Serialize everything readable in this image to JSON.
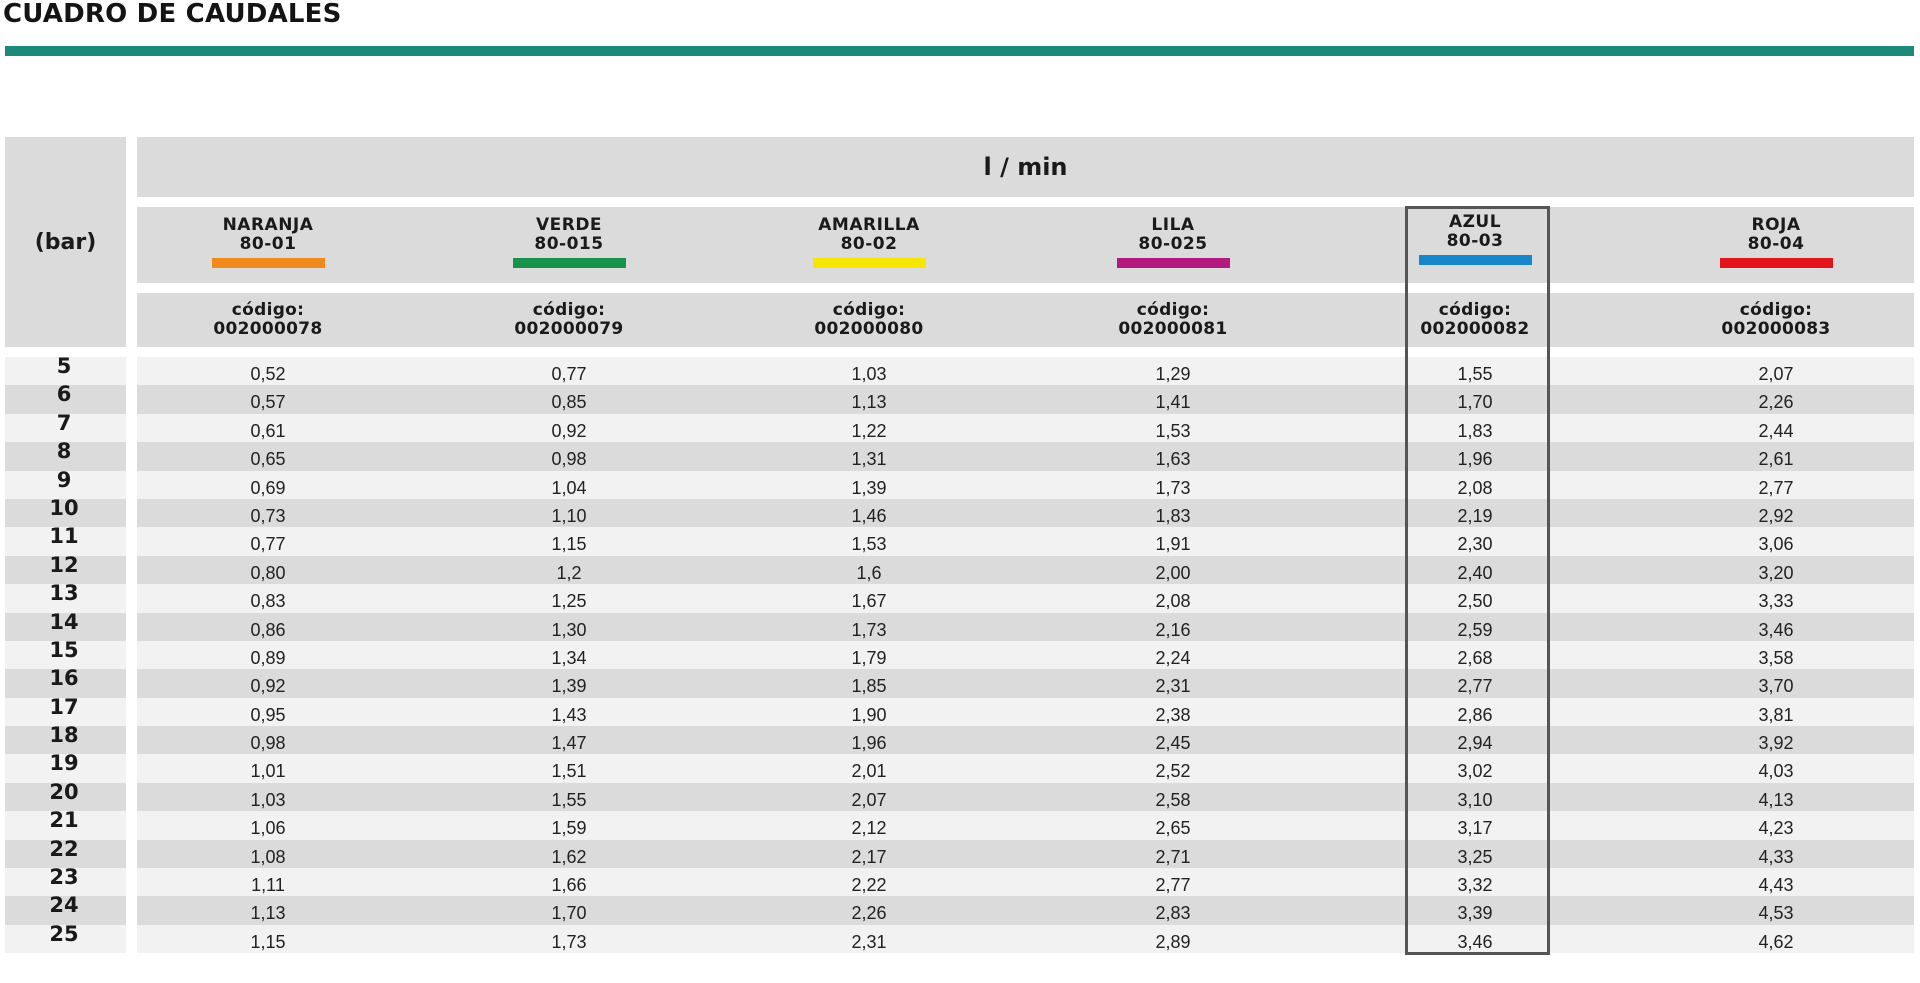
{
  "title": "CUADRO DE CAUDALES",
  "bar_header": "(bar)",
  "unit_header": "l / min",
  "nozzles": [
    {
      "name": "NARANJA",
      "model": "80-01",
      "code_label": "código:",
      "code": "002000078",
      "color": "#f08a1d"
    },
    {
      "name": "VERDE",
      "model": "80-015",
      "code_label": "código:",
      "code": "002000079",
      "color": "#16924a"
    },
    {
      "name": "AMARILLA",
      "model": "80-02",
      "code_label": "código:",
      "code": "002000080",
      "color": "#f6e600"
    },
    {
      "name": "LILA",
      "model": "80-025",
      "code_label": "código:",
      "code": "002000081",
      "color": "#b3197f"
    },
    {
      "name": "AZUL",
      "model": "80-03",
      "code_label": "código:",
      "code": "002000082",
      "color": "#1786cb"
    },
    {
      "name": "ROJA",
      "model": "80-04",
      "code_label": "código:",
      "code": "002000083",
      "color": "#e3141b"
    }
  ],
  "rows": [
    {
      "bar": "5",
      "values": [
        "0,52",
        "0,77",
        "1,03",
        "1,29",
        "1,55",
        "2,07"
      ]
    },
    {
      "bar": "6",
      "values": [
        "0,57",
        "0,85",
        "1,13",
        "1,41",
        "1,70",
        "2,26"
      ]
    },
    {
      "bar": "7",
      "values": [
        "0,61",
        "0,92",
        "1,22",
        "1,53",
        "1,83",
        "2,44"
      ]
    },
    {
      "bar": "8",
      "values": [
        "0,65",
        "0,98",
        "1,31",
        "1,63",
        "1,96",
        "2,61"
      ]
    },
    {
      "bar": "9",
      "values": [
        "0,69",
        "1,04",
        "1,39",
        "1,73",
        "2,08",
        "2,77"
      ]
    },
    {
      "bar": "10",
      "values": [
        "0,73",
        "1,10",
        "1,46",
        "1,83",
        "2,19",
        "2,92"
      ]
    },
    {
      "bar": "11",
      "values": [
        "0,77",
        "1,15",
        "1,53",
        "1,91",
        "2,30",
        "3,06"
      ]
    },
    {
      "bar": "12",
      "values": [
        "0,80",
        "1,2",
        "1,6",
        "2,00",
        "2,40",
        "3,20"
      ]
    },
    {
      "bar": "13",
      "values": [
        "0,83",
        "1,25",
        "1,67",
        "2,08",
        "2,50",
        "3,33"
      ]
    },
    {
      "bar": "14",
      "values": [
        "0,86",
        "1,30",
        "1,73",
        "2,16",
        "2,59",
        "3,46"
      ]
    },
    {
      "bar": "15",
      "values": [
        "0,89",
        "1,34",
        "1,79",
        "2,24",
        "2,68",
        "3,58"
      ]
    },
    {
      "bar": "16",
      "values": [
        "0,92",
        "1,39",
        "1,85",
        "2,31",
        "2,77",
        "3,70"
      ]
    },
    {
      "bar": "17",
      "values": [
        "0,95",
        "1,43",
        "1,90",
        "2,38",
        "2,86",
        "3,81"
      ]
    },
    {
      "bar": "18",
      "values": [
        "0,98",
        "1,47",
        "1,96",
        "2,45",
        "2,94",
        "3,92"
      ]
    },
    {
      "bar": "19",
      "values": [
        "1,01",
        "1,51",
        "2,01",
        "2,52",
        "3,02",
        "4,03"
      ]
    },
    {
      "bar": "20",
      "values": [
        "1,03",
        "1,55",
        "2,07",
        "2,58",
        "3,10",
        "4,13"
      ]
    },
    {
      "bar": "21",
      "values": [
        "1,06",
        "1,59",
        "2,12",
        "2,65",
        "3,17",
        "4,23"
      ]
    },
    {
      "bar": "22",
      "values": [
        "1,08",
        "1,62",
        "2,17",
        "2,71",
        "3,25",
        "4,33"
      ]
    },
    {
      "bar": "23",
      "values": [
        "1,11",
        "1,66",
        "2,22",
        "2,77",
        "3,32",
        "4,43"
      ]
    },
    {
      "bar": "24",
      "values": [
        "1,13",
        "1,70",
        "2,26",
        "2,83",
        "3,39",
        "4,53"
      ]
    },
    {
      "bar": "25",
      "values": [
        "1,15",
        "1,73",
        "2,31",
        "2,89",
        "3,46",
        "4,62"
      ]
    }
  ],
  "highlighted_column": 4
}
